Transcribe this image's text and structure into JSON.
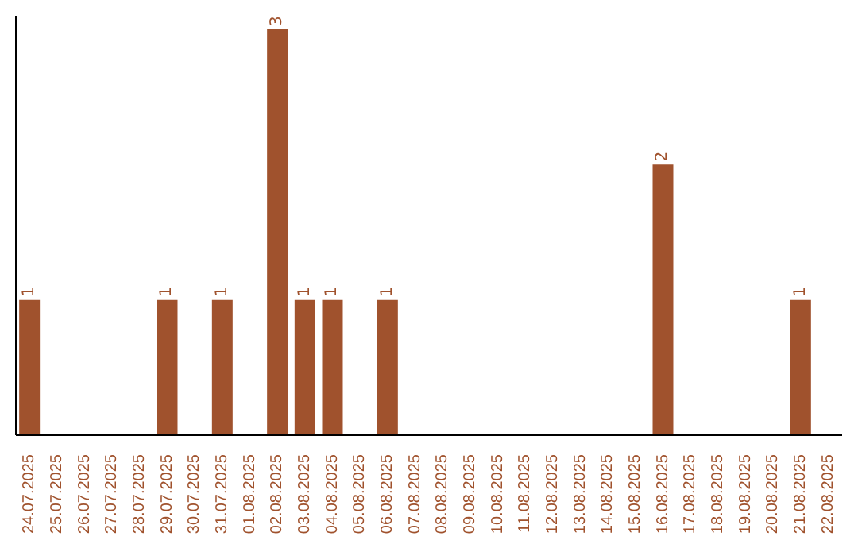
{
  "chart_data": {
    "type": "bar",
    "categories": [
      "24.07.2025",
      "25.07.2025",
      "26.07.2025",
      "27.07.2025",
      "28.07.2025",
      "29.07.2025",
      "30.07.2025",
      "31.07.2025",
      "01.08.2025",
      "02.08.2025",
      "03.08.2025",
      "04.08.2025",
      "05.08.2025",
      "06.08.2025",
      "07.08.2025",
      "08.08.2025",
      "09.08.2025",
      "10.08.2025",
      "11.08.2025",
      "12.08.2025",
      "13.08.2025",
      "14.08.2025",
      "15.08.2025",
      "16.08.2025",
      "17.08.2025",
      "18.08.2025",
      "19.08.2025",
      "20.08.2025",
      "21.08.2025",
      "22.08.2025"
    ],
    "values": [
      1,
      0,
      0,
      0,
      0,
      1,
      0,
      1,
      0,
      3,
      1,
      1,
      0,
      1,
      0,
      0,
      0,
      0,
      0,
      0,
      0,
      0,
      0,
      2,
      0,
      0,
      0,
      0,
      1,
      0
    ],
    "value_labels": [
      "1",
      null,
      null,
      null,
      null,
      "1",
      null,
      "1",
      null,
      "3",
      "1",
      "1",
      null,
      "1",
      null,
      null,
      null,
      null,
      null,
      null,
      null,
      null,
      null,
      "2",
      null,
      null,
      null,
      null,
      "1",
      null
    ],
    "color": "#a0522d",
    "ylim": [
      0,
      3.1
    ],
    "tick_labels": "x",
    "grid": false
  }
}
